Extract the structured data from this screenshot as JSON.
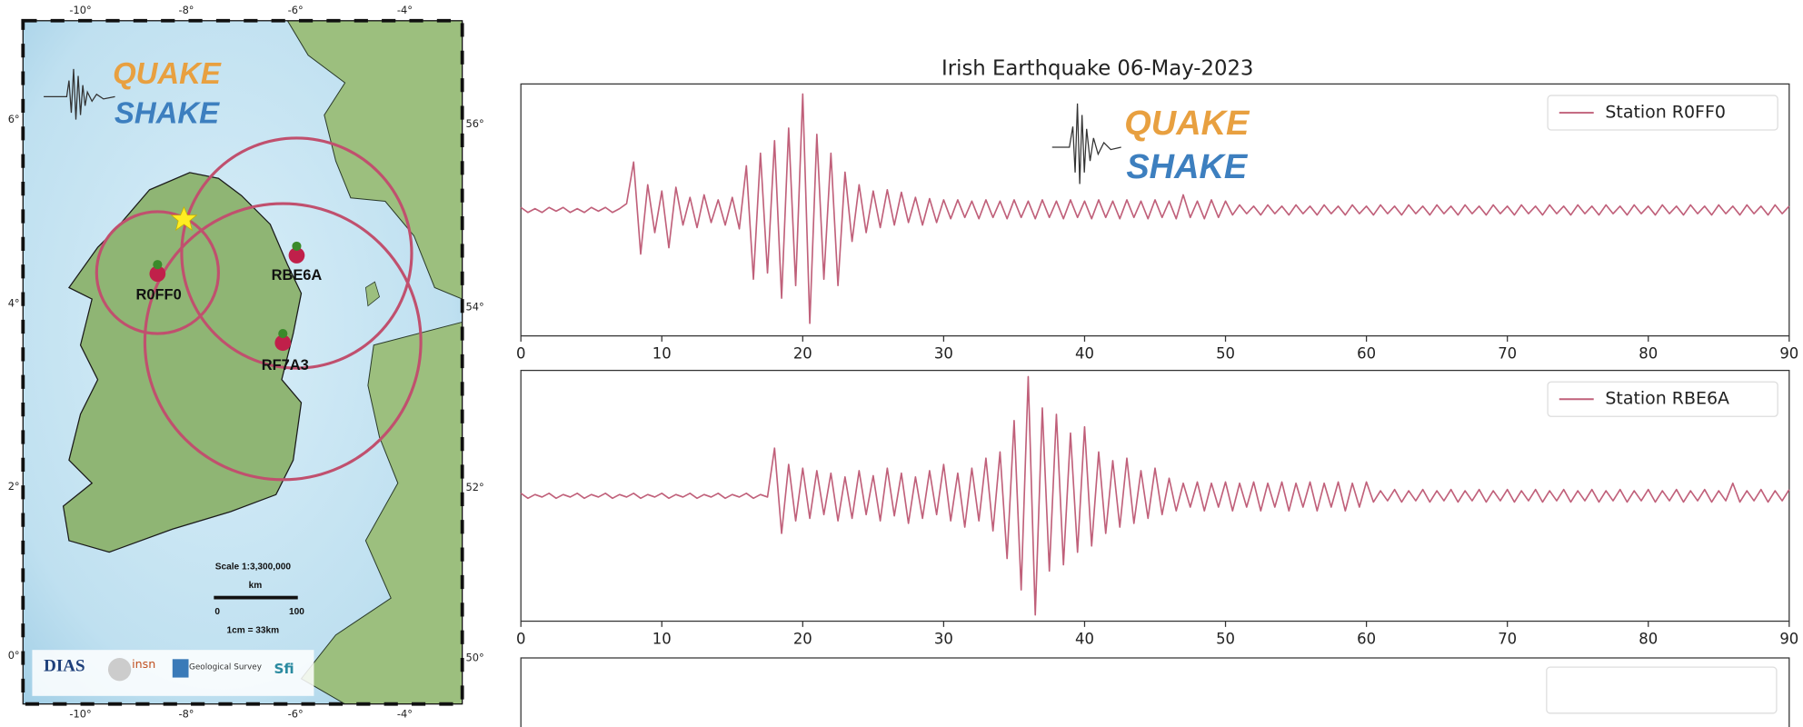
{
  "logo": {
    "top": "QUAKE",
    "bottom": "SHAKE"
  },
  "map": {
    "lon_ticks": [
      "-10°",
      "-8°",
      "-6°",
      "-4°"
    ],
    "lat_ticks_left": [
      "0°",
      "2°",
      "4°",
      "6°"
    ],
    "lat_ticks_right": [
      "50°",
      "52°",
      "54°",
      "56°"
    ],
    "stations": [
      "R0FF0",
      "RBE6A",
      "RF7A3"
    ],
    "scale": "Scale 1:3,300,000",
    "scale_unit": "km",
    "scale_start": "0",
    "scale_end": "100",
    "scale_ratio": "1cm = 33km",
    "logos": [
      "DIAS",
      "insn",
      "Geological Survey",
      "Sfi"
    ]
  },
  "chart_data": [
    {
      "type": "line",
      "title": "Irish Earthquake 06-May-2023",
      "x": [
        0,
        0.5,
        1,
        1.5,
        2,
        2.5,
        3,
        3.5,
        4,
        4.5,
        5,
        5.5,
        6,
        6.5,
        7,
        7.5,
        8,
        8.5,
        9,
        9.5,
        10,
        10.5,
        11,
        11.5,
        12,
        12.5,
        13,
        13.5,
        14,
        14.5,
        15,
        15.5,
        16,
        16.5,
        17,
        17.5,
        18,
        18.5,
        19,
        19.5,
        20,
        20.5,
        21,
        21.5,
        22,
        22.5,
        23,
        23.5,
        24,
        24.5,
        25,
        25.5,
        26,
        26.5,
        27,
        27.5,
        28,
        28.5,
        29,
        29.5,
        30,
        30.5,
        31,
        31.5,
        32,
        32.5,
        33,
        33.5,
        34,
        34.5,
        35,
        35.5,
        36,
        36.5,
        37,
        37.5,
        38,
        38.5,
        39,
        39.5,
        40,
        40.5,
        41,
        41.5,
        42,
        42.5,
        43,
        43.5,
        44,
        44.5,
        45,
        45.5,
        46,
        46.5,
        47,
        47.5,
        48,
        48.5,
        49,
        49.5,
        50,
        50.5,
        51,
        51.5,
        52,
        52.5,
        53,
        53.5,
        54,
        54.5,
        55,
        55.5,
        56,
        56.5,
        57,
        57.5,
        58,
        58.5,
        59,
        59.5,
        60,
        60.5,
        61,
        61.5,
        62,
        62.5,
        63,
        63.5,
        64,
        64.5,
        65,
        65.5,
        66,
        66.5,
        67,
        67.5,
        68,
        68.5,
        69,
        69.5,
        70,
        70.5,
        71,
        71.5,
        72,
        72.5,
        73,
        73.5,
        74,
        74.5,
        75,
        75.5,
        76,
        76.5,
        77,
        77.5,
        78,
        78.5,
        79,
        79.5,
        80,
        80.5,
        81,
        81.5,
        82,
        82.5,
        83,
        83.5,
        84,
        84.5,
        85,
        85.5,
        86,
        86.5,
        87,
        87.5,
        88,
        88.5,
        89,
        89.5,
        90
      ],
      "series": [
        {
          "name": "Station R0FF0",
          "color": "#c0607a",
          "values": [
            0.02,
            -0.02,
            0.01,
            -0.02,
            0.02,
            -0.01,
            0.02,
            -0.02,
            0.01,
            -0.02,
            0.02,
            -0.01,
            0.02,
            -0.02,
            0.01,
            0.05,
            0.38,
            -0.35,
            0.2,
            -0.18,
            0.15,
            -0.3,
            0.18,
            -0.12,
            0.1,
            -0.14,
            0.12,
            -0.1,
            0.08,
            -0.12,
            0.1,
            -0.15,
            0.35,
            -0.55,
            0.45,
            -0.5,
            0.55,
            -0.7,
            0.65,
            -0.6,
            0.92,
            -0.9,
            0.6,
            -0.55,
            0.45,
            -0.6,
            0.3,
            -0.25,
            0.2,
            -0.18,
            0.15,
            -0.14,
            0.16,
            -0.12,
            0.14,
            -0.1,
            0.1,
            -0.12,
            0.09,
            -0.1,
            0.08,
            -0.07,
            0.08,
            -0.06,
            0.07,
            -0.07,
            0.08,
            -0.06,
            0.07,
            -0.07,
            0.08,
            -0.06,
            0.07,
            -0.07,
            0.08,
            -0.06,
            0.07,
            -0.07,
            0.08,
            -0.06,
            0.07,
            -0.07,
            0.08,
            -0.06,
            0.07,
            -0.07,
            0.08,
            -0.06,
            0.07,
            -0.07,
            0.08,
            -0.06,
            0.07,
            -0.07,
            0.12,
            -0.06,
            0.07,
            -0.07,
            0.08,
            -0.06,
            0.07,
            -0.04,
            0.04,
            -0.03,
            0.03,
            -0.04,
            0.04,
            -0.03,
            0.03,
            -0.04,
            0.04,
            -0.03,
            0.03,
            -0.04,
            0.04,
            -0.03,
            0.03,
            -0.04,
            0.04,
            -0.03,
            0.03,
            -0.04,
            0.04,
            -0.03,
            0.03,
            -0.04,
            0.04,
            -0.03,
            0.03,
            -0.04,
            0.04,
            -0.03,
            0.03,
            -0.04,
            0.04,
            -0.03,
            0.03,
            -0.04,
            0.04,
            -0.03,
            0.03,
            -0.04,
            0.04,
            -0.03,
            0.03,
            -0.04,
            0.04,
            -0.03,
            0.03,
            -0.04,
            0.04,
            -0.03,
            0.03,
            -0.04,
            0.04,
            -0.03,
            0.03,
            -0.04,
            0.04,
            -0.03,
            0.03,
            -0.04,
            0.04,
            -0.03,
            0.03,
            -0.04,
            0.04,
            -0.03,
            0.03,
            -0.04,
            0.04,
            -0.03,
            0.03,
            -0.04,
            0.04,
            -0.03,
            0.03,
            -0.04,
            0.04,
            -0.03,
            0.03
          ]
        }
      ],
      "xlim": [
        0,
        90
      ],
      "xticks": [
        0,
        10,
        20,
        30,
        40,
        50,
        60,
        70,
        80,
        90
      ],
      "ylim": [
        -1,
        1
      ],
      "legend": "upper right"
    },
    {
      "type": "line",
      "x": [
        0,
        0.5,
        1,
        1.5,
        2,
        2.5,
        3,
        3.5,
        4,
        4.5,
        5,
        5.5,
        6,
        6.5,
        7,
        7.5,
        8,
        8.5,
        9,
        9.5,
        10,
        10.5,
        11,
        11.5,
        12,
        12.5,
        13,
        13.5,
        14,
        14.5,
        15,
        15.5,
        16,
        16.5,
        17,
        17.5,
        18,
        18.5,
        19,
        19.5,
        20,
        20.5,
        21,
        21.5,
        22,
        22.5,
        23,
        23.5,
        24,
        24.5,
        25,
        25.5,
        26,
        26.5,
        27,
        27.5,
        28,
        28.5,
        29,
        29.5,
        30,
        30.5,
        31,
        31.5,
        32,
        32.5,
        33,
        33.5,
        34,
        34.5,
        35,
        35.5,
        36,
        36.5,
        37,
        37.5,
        38,
        38.5,
        39,
        39.5,
        40,
        40.5,
        41,
        41.5,
        42,
        42.5,
        43,
        43.5,
        44,
        44.5,
        45,
        45.5,
        46,
        46.5,
        47,
        47.5,
        48,
        48.5,
        49,
        49.5,
        50,
        50.5,
        51,
        51.5,
        52,
        52.5,
        53,
        53.5,
        54,
        54.5,
        55,
        55.5,
        56,
        56.5,
        57,
        57.5,
        58,
        58.5,
        59,
        59.5,
        60,
        60.5,
        61,
        61.5,
        62,
        62.5,
        63,
        63.5,
        64,
        64.5,
        65,
        65.5,
        66,
        66.5,
        67,
        67.5,
        68,
        68.5,
        69,
        69.5,
        70,
        70.5,
        71,
        71.5,
        72,
        72.5,
        73,
        73.5,
        74,
        74.5,
        75,
        75.5,
        76,
        76.5,
        77,
        77.5,
        78,
        78.5,
        79,
        79.5,
        80,
        80.5,
        81,
        81.5,
        82,
        82.5,
        83,
        83.5,
        84,
        84.5,
        85,
        85.5,
        86,
        86.5,
        87,
        87.5,
        88,
        88.5,
        89,
        89.5,
        90
      ],
      "series": [
        {
          "name": "Station RBE6A",
          "color": "#c0607a",
          "values": [
            0.02,
            -0.02,
            0.01,
            -0.01,
            0.02,
            -0.02,
            0.01,
            -0.01,
            0.02,
            -0.02,
            0.01,
            -0.01,
            0.02,
            -0.02,
            0.01,
            -0.01,
            0.02,
            -0.02,
            0.01,
            -0.01,
            0.02,
            -0.02,
            0.01,
            -0.01,
            0.02,
            -0.02,
            0.01,
            -0.01,
            0.02,
            -0.02,
            0.01,
            -0.01,
            0.02,
            -0.02,
            0.01,
            -0.01,
            0.38,
            -0.3,
            0.25,
            -0.2,
            0.22,
            -0.18,
            0.2,
            -0.15,
            0.18,
            -0.2,
            0.15,
            -0.18,
            0.2,
            -0.15,
            0.16,
            -0.2,
            0.22,
            -0.16,
            0.18,
            -0.22,
            0.15,
            -0.18,
            0.2,
            -0.15,
            0.25,
            -0.2,
            0.18,
            -0.25,
            0.22,
            -0.2,
            0.3,
            -0.28,
            0.35,
            -0.5,
            0.6,
            -0.75,
            0.95,
            -0.95,
            0.7,
            -0.6,
            0.65,
            -0.55,
            0.5,
            -0.45,
            0.55,
            -0.4,
            0.35,
            -0.3,
            0.28,
            -0.25,
            0.3,
            -0.22,
            0.2,
            -0.18,
            0.22,
            -0.15,
            0.14,
            -0.12,
            0.1,
            -0.09,
            0.11,
            -0.12,
            0.1,
            -0.09,
            0.11,
            -0.12,
            0.1,
            -0.09,
            0.11,
            -0.12,
            0.1,
            -0.09,
            0.11,
            -0.12,
            0.1,
            -0.09,
            0.11,
            -0.12,
            0.1,
            -0.09,
            0.11,
            -0.12,
            0.1,
            -0.09,
            0.11,
            -0.05,
            0.04,
            -0.04,
            0.05,
            -0.05,
            0.04,
            -0.04,
            0.05,
            -0.05,
            0.04,
            -0.04,
            0.05,
            -0.05,
            0.04,
            -0.04,
            0.05,
            -0.05,
            0.04,
            -0.04,
            0.05,
            -0.05,
            0.04,
            -0.04,
            0.05,
            -0.05,
            0.04,
            -0.04,
            0.05,
            -0.05,
            0.04,
            -0.04,
            0.05,
            -0.05,
            0.04,
            -0.04,
            0.05,
            -0.05,
            0.04,
            -0.04,
            0.05,
            -0.05,
            0.04,
            -0.04,
            0.05,
            -0.05,
            0.04,
            -0.04,
            0.05,
            -0.05,
            0.04,
            -0.04,
            0.1,
            -0.05,
            0.04,
            -0.04,
            0.05,
            -0.05,
            0.04,
            -0.04,
            0.05
          ]
        }
      ],
      "xlim": [
        0,
        90
      ],
      "xticks": [
        0,
        10,
        20,
        30,
        40,
        50,
        60,
        70,
        80,
        90
      ],
      "ylim": [
        -1,
        1
      ],
      "legend": "upper right"
    }
  ]
}
